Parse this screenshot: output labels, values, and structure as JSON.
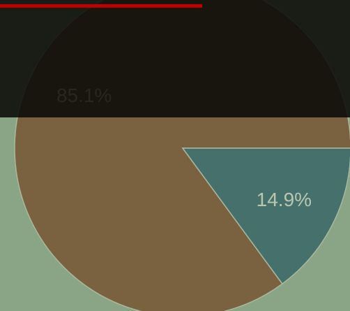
{
  "chart_data": {
    "type": "pie",
    "values": [
      85.1,
      14.9
    ],
    "value_labels": [
      "85.1%",
      "14.9%"
    ],
    "colors": [
      "#7a6240",
      "#45706b"
    ],
    "label_colors": [
      "#27261f",
      "#b9c7b0"
    ]
  }
}
